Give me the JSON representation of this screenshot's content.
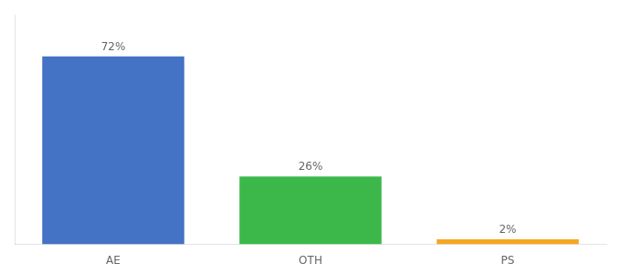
{
  "chart_data": {
    "type": "bar",
    "categories": [
      "AE",
      "OTH",
      "PS"
    ],
    "values": [
      72,
      26,
      2
    ],
    "value_labels": [
      "72%",
      "26%",
      "2%"
    ],
    "colors": [
      "#4472c4",
      "#3cb84a",
      "#f5a623"
    ],
    "ylim": [
      0,
      88
    ],
    "data_labels": true,
    "tick_labels": "x",
    "grid": false
  }
}
